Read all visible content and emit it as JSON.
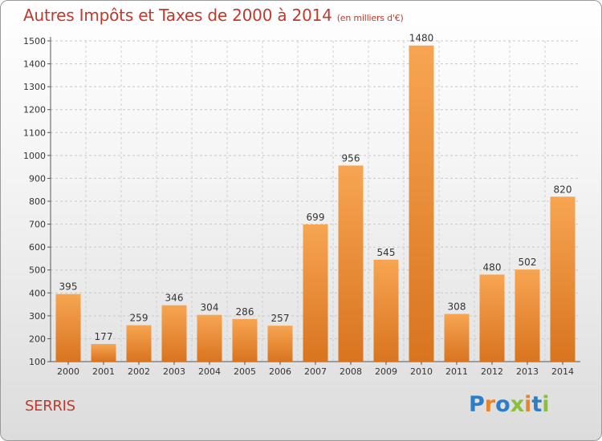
{
  "header": {
    "title": "Autres Impôts et Taxes de 2000 à 2014",
    "subtitle": "(en milliers d'€)"
  },
  "footer": {
    "city": "SERRIS",
    "brand": "Proxiti"
  },
  "colors": {
    "title": "#c0392b",
    "bar_light": "#f7a552",
    "bar_dark": "#d9741f",
    "brand_letters": [
      "#2c7fc6",
      "#e8842a",
      "#2c7fc6",
      "#8bbf3a",
      "#e8842a",
      "#2c7fc6",
      "#8bbf3a"
    ]
  },
  "chart_data": {
    "type": "bar",
    "categories": [
      "2000",
      "2001",
      "2002",
      "2003",
      "2004",
      "2005",
      "2006",
      "2007",
      "2008",
      "2009",
      "2010",
      "2011",
      "2012",
      "2013",
      "2014"
    ],
    "values": [
      395,
      177,
      259,
      346,
      304,
      286,
      257,
      699,
      956,
      545,
      1480,
      308,
      480,
      502,
      820
    ],
    "ylim": [
      100,
      1500
    ],
    "yticks": [
      100,
      200,
      300,
      400,
      500,
      600,
      700,
      800,
      900,
      1000,
      1100,
      1200,
      1300,
      1400,
      1500
    ],
    "grid": true,
    "data_labels": true
  }
}
